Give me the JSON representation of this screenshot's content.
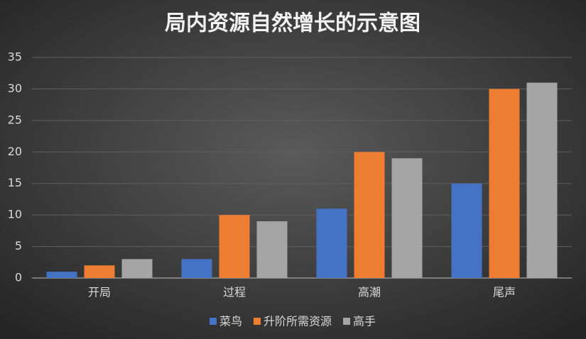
{
  "chart_data": {
    "type": "bar",
    "title": "局内资源自然增长的示意图",
    "categories": [
      "开局",
      "过程",
      "高潮",
      "尾声"
    ],
    "series": [
      {
        "name": "菜鸟",
        "color": "#4472c4",
        "values": [
          1,
          3,
          11,
          15
        ]
      },
      {
        "name": "升阶所需资源",
        "color": "#ed7d31",
        "values": [
          2,
          10,
          20,
          30
        ]
      },
      {
        "name": "高手",
        "color": "#a5a5a5",
        "values": [
          3,
          9,
          19,
          31
        ]
      }
    ],
    "ylim": [
      0,
      35
    ],
    "yticks": [
      0,
      5,
      10,
      15,
      20,
      25,
      30,
      35
    ],
    "grid": true,
    "legend": "bottom"
  }
}
